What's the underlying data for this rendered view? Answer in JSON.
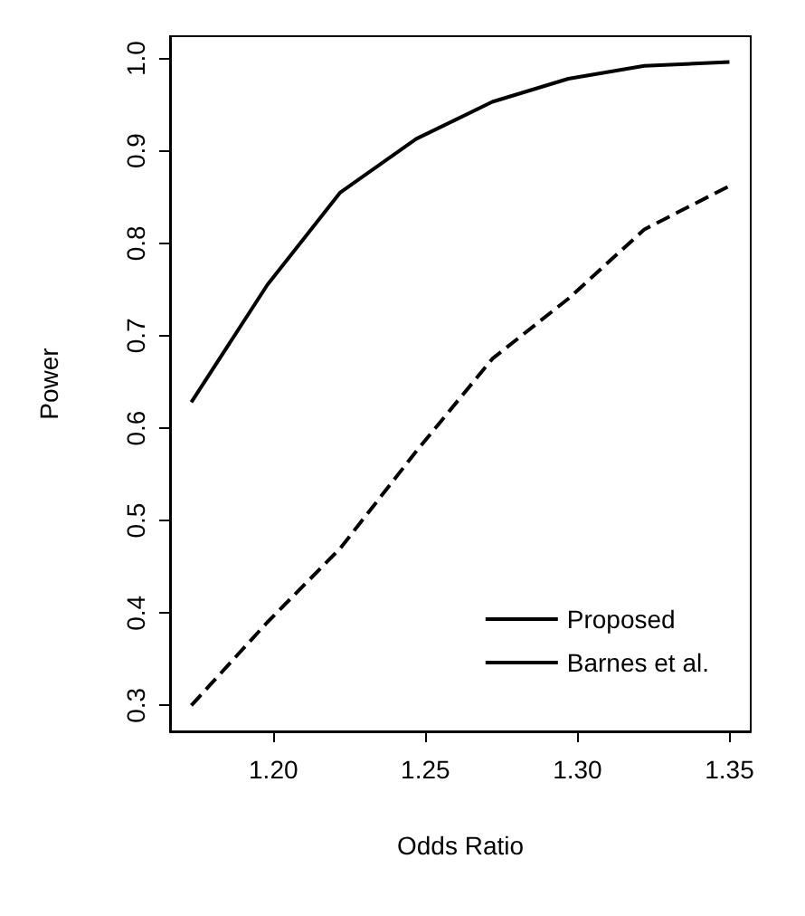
{
  "chart_data": {
    "type": "line",
    "xlabel": "Odds Ratio",
    "ylabel": "Power",
    "x": [
      1.173,
      1.198,
      1.222,
      1.247,
      1.272,
      1.297,
      1.322,
      1.35
    ],
    "series": [
      {
        "name": "Proposed",
        "color": "#000000",
        "line_style": "solid",
        "values": [
          0.628,
          0.755,
          0.855,
          0.913,
          0.953,
          0.978,
          0.992,
          0.996
        ]
      },
      {
        "name": "Barnes et al.",
        "color": "#000000",
        "line_style": "dashed",
        "values": [
          0.3,
          0.39,
          0.47,
          0.575,
          0.675,
          0.74,
          0.815,
          0.862
        ]
      }
    ],
    "xlim": [
      1.166,
      1.357
    ],
    "xticks": [
      {
        "value": 1.2,
        "label": "1.20"
      },
      {
        "value": 1.25,
        "label": "1.25"
      },
      {
        "value": 1.3,
        "label": "1.30"
      },
      {
        "value": 1.35,
        "label": "1.35"
      }
    ],
    "ylim": [
      0.272,
      1.024
    ],
    "yticks": [
      {
        "value": 0.3,
        "label": "0.3"
      },
      {
        "value": 0.4,
        "label": "0.4"
      },
      {
        "value": 0.5,
        "label": "0.5"
      },
      {
        "value": 0.6,
        "label": "0.6"
      },
      {
        "value": 0.7,
        "label": "0.7"
      },
      {
        "value": 0.8,
        "label": "0.8"
      },
      {
        "value": 0.9,
        "label": "0.9"
      },
      {
        "value": 1.0,
        "label": "1.0"
      }
    ],
    "grid": false,
    "legend": "bottom right",
    "marker": "none"
  }
}
